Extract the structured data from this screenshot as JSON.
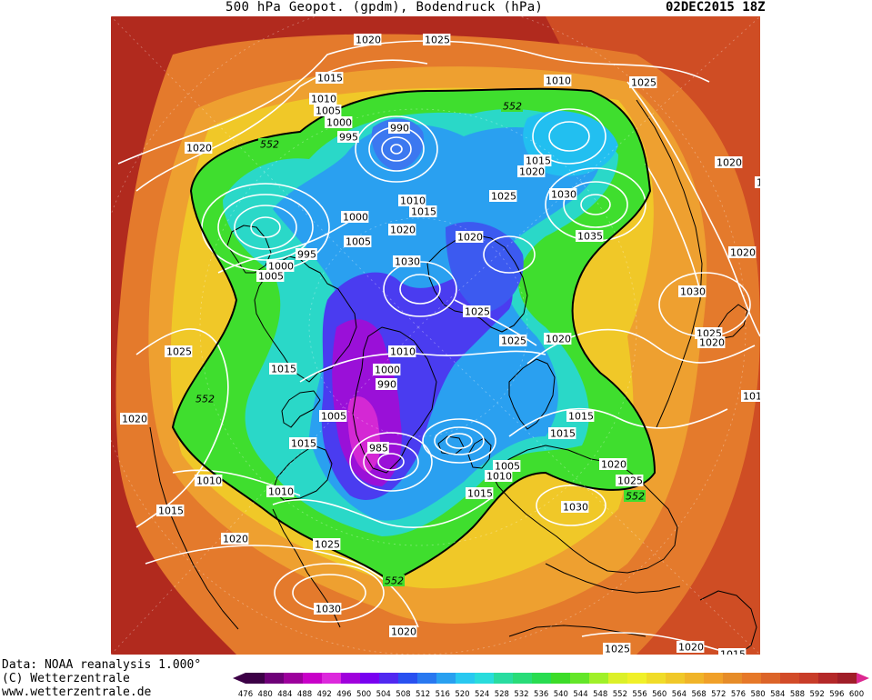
{
  "header": {
    "title": "500 hPa Geopot. (gpdm), Bodendruck (hPa)",
    "datetime": "02DEC2015 18Z"
  },
  "credits": {
    "data_source": "Data: NOAA reanalysis 1.000°",
    "copyright": "(C) Wetterzentrale",
    "website": "www.wetterzentrale.de"
  },
  "colorbar": {
    "ticks": [
      "476",
      "480",
      "484",
      "488",
      "492",
      "496",
      "500",
      "504",
      "508",
      "512",
      "516",
      "520",
      "524",
      "528",
      "532",
      "536",
      "540",
      "544",
      "548",
      "552",
      "556",
      "560",
      "564",
      "568",
      "572",
      "576",
      "580",
      "584",
      "588",
      "592",
      "596",
      "600"
    ],
    "colors": [
      "#3c0046",
      "#6e0078",
      "#9c009c",
      "#c800c8",
      "#dc28dc",
      "#a000dc",
      "#7800f0",
      "#5028f0",
      "#2850f0",
      "#2878f0",
      "#28a0f0",
      "#28c8f0",
      "#28dcdc",
      "#28dca0",
      "#28dc78",
      "#28dc50",
      "#3cdc28",
      "#64e628",
      "#a0f028",
      "#dcf028",
      "#f0f028",
      "#f0dc28",
      "#f0c828",
      "#f0b428",
      "#f0a028",
      "#e68c28",
      "#e67828",
      "#dc6428",
      "#d24b28",
      "#c83c28",
      "#b42828",
      "#a01e28"
    ]
  },
  "map": {
    "colors": {
      "background": "#b12a1e",
      "ocean_orange": "#e47a2c",
      "ring_yellow": "#f0c828",
      "green": "#3fde2e",
      "cyan": "#2ad8c8",
      "blue": "#2aa0f0",
      "deep_blue": "#4a3cf0",
      "purple": "#9a10d8",
      "magenta": "#d428d4",
      "isobar": "#ffffff",
      "coast": "#000000"
    },
    "isobar_labels": [
      {
        "text": "1020",
        "pos": [
          389,
          43
        ]
      },
      {
        "text": "1025",
        "pos": [
          465,
          43
        ]
      },
      {
        "text": "1010",
        "pos": [
          598,
          88
        ]
      },
      {
        "text": "1025",
        "pos": [
          692,
          90
        ]
      },
      {
        "text": "1015",
        "pos": [
          347,
          85
        ]
      },
      {
        "text": "1010",
        "pos": [
          340,
          108
        ]
      },
      {
        "text": "1005",
        "pos": [
          345,
          121
        ]
      },
      {
        "text": "1000",
        "pos": [
          357,
          134
        ]
      },
      {
        "text": "995",
        "pos": [
          371,
          150
        ]
      },
      {
        "text": "990",
        "pos": [
          427,
          140
        ]
      },
      {
        "text": "1020",
        "pos": [
          203,
          162
        ]
      },
      {
        "text": "1015",
        "pos": [
          576,
          176
        ]
      },
      {
        "text": "1020",
        "pos": [
          569,
          188
        ]
      },
      {
        "text": "1020",
        "pos": [
          786,
          178
        ]
      },
      {
        "text": "1025",
        "pos": [
          538,
          215
        ]
      },
      {
        "text": "1030",
        "pos": [
          604,
          213
        ]
      },
      {
        "text": "1010",
        "pos": [
          438,
          220
        ]
      },
      {
        "text": "1015",
        "pos": [
          450,
          232
        ]
      },
      {
        "text": "1000",
        "pos": [
          375,
          238
        ]
      },
      {
        "text": "1020",
        "pos": [
          427,
          252
        ]
      },
      {
        "text": "1005",
        "pos": [
          378,
          265
        ]
      },
      {
        "text": "1020",
        "pos": [
          501,
          260
        ]
      },
      {
        "text": "1035",
        "pos": [
          633,
          259
        ]
      },
      {
        "text": "1020",
        "pos": [
          801,
          277
        ]
      },
      {
        "text": "995",
        "pos": [
          325,
          279
        ]
      },
      {
        "text": "1000",
        "pos": [
          293,
          292
        ]
      },
      {
        "text": "1005",
        "pos": [
          282,
          303
        ]
      },
      {
        "text": "1030",
        "pos": [
          432,
          287
        ]
      },
      {
        "text": "1030",
        "pos": [
          746,
          320
        ]
      },
      {
        "text": "1025",
        "pos": [
          509,
          342
        ]
      },
      {
        "text": "1025",
        "pos": [
          764,
          366
        ]
      },
      {
        "text": "1020",
        "pos": [
          767,
          376
        ]
      },
      {
        "text": "1025",
        "pos": [
          549,
          374
        ]
      },
      {
        "text": "1020",
        "pos": [
          598,
          372
        ]
      },
      {
        "text": "1025",
        "pos": [
          181,
          386
        ]
      },
      {
        "text": "1010",
        "pos": [
          427,
          386
        ]
      },
      {
        "text": "1015",
        "pos": [
          296,
          405
        ]
      },
      {
        "text": "1000",
        "pos": [
          410,
          406
        ]
      },
      {
        "text": "990",
        "pos": [
          413,
          422
        ]
      },
      {
        "text": "1020",
        "pos": [
          132,
          460
        ]
      },
      {
        "text": "1005",
        "pos": [
          351,
          457
        ]
      },
      {
        "text": "1015",
        "pos": [
          623,
          457
        ]
      },
      {
        "text": "1015",
        "pos": [
          603,
          476
        ]
      },
      {
        "text": "1015",
        "pos": [
          318,
          487
        ]
      },
      {
        "text": "985",
        "pos": [
          404,
          492
        ]
      },
      {
        "text": "1005",
        "pos": [
          542,
          512
        ]
      },
      {
        "text": "1010",
        "pos": [
          533,
          523
        ]
      },
      {
        "text": "1020",
        "pos": [
          659,
          510
        ]
      },
      {
        "text": "1010",
        "pos": [
          214,
          528
        ]
      },
      {
        "text": "1010",
        "pos": [
          293,
          540
        ]
      },
      {
        "text": "1025",
        "pos": [
          677,
          528
        ]
      },
      {
        "text": "1015",
        "pos": [
          512,
          542
        ]
      },
      {
        "text": "1030",
        "pos": [
          617,
          557
        ]
      },
      {
        "text": "1015",
        "pos": [
          172,
          561
        ]
      },
      {
        "text": "1020",
        "pos": [
          243,
          592
        ]
      },
      {
        "text": "1025",
        "pos": [
          344,
          598
        ]
      },
      {
        "text": "1030",
        "pos": [
          345,
          669
        ]
      },
      {
        "text": "1020",
        "pos": [
          428,
          694
        ]
      },
      {
        "text": "1025",
        "pos": [
          663,
          713
        ]
      },
      {
        "text": "1020",
        "pos": [
          744,
          711
        ]
      },
      {
        "text": "1015",
        "pos": [
          790,
          719
        ]
      },
      {
        "text": "101",
        "pos": [
          815,
          435
        ]
      },
      {
        "text": "1",
        "pos": [
          830,
          200
        ]
      }
    ],
    "contour_labels": [
      {
        "text": "552",
        "pos": [
          286,
          158
        ]
      },
      {
        "text": "552",
        "pos": [
          553,
          116
        ]
      },
      {
        "text": "552",
        "pos": [
          215,
          438
        ]
      },
      {
        "text": "552",
        "pos": [
          688,
          545
        ]
      },
      {
        "text": "552",
        "pos": [
          423,
          638
        ]
      }
    ]
  }
}
